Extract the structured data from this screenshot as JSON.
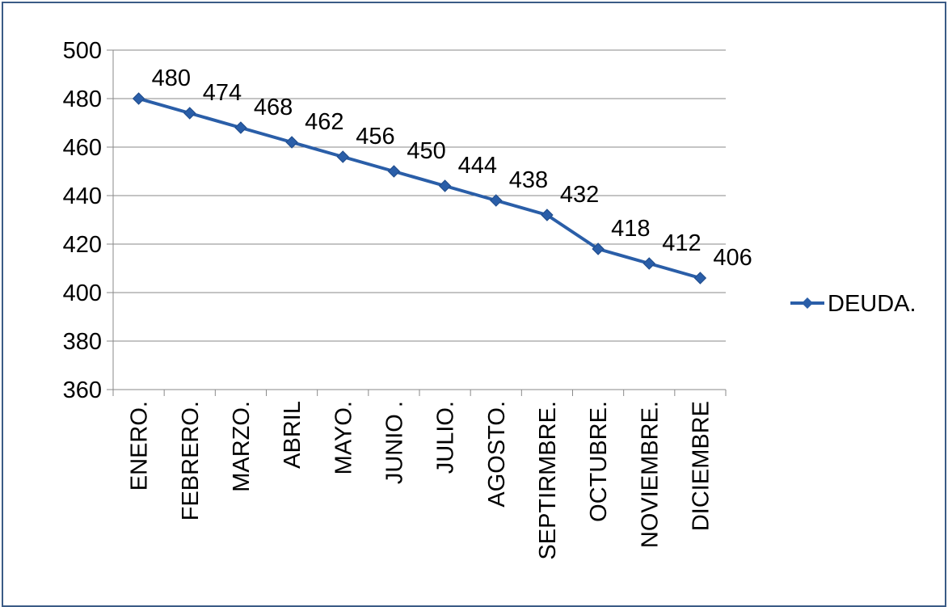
{
  "chart_data": {
    "type": "line",
    "categories": [
      "ENERO.",
      "FEBRERO.",
      "MARZO.",
      "ABRIL",
      "MAYO.",
      "JUNIO .",
      "JULIO.",
      "AGOSTO.",
      "SEPTIRMBRE.",
      "OCTUBRE.",
      "NOVIEMBRE.",
      "DICIEMBRE"
    ],
    "series": [
      {
        "name": "DEUDA.",
        "values": [
          480,
          474,
          468,
          462,
          456,
          450,
          444,
          438,
          432,
          418,
          412,
          406
        ],
        "color": "#2a5ea8",
        "marker": "diamond"
      }
    ],
    "data_labels": [
      "480",
      "474",
      "468",
      "462",
      "456",
      "450",
      "444",
      "438",
      "432",
      "418",
      "412",
      "406"
    ],
    "y_ticks": [
      "360",
      "380",
      "400",
      "420",
      "440",
      "460",
      "480",
      "500"
    ],
    "ylim": [
      360,
      500
    ],
    "grid": "horizontal",
    "legend_position": "right",
    "title": "",
    "xlabel": "",
    "ylabel": ""
  }
}
